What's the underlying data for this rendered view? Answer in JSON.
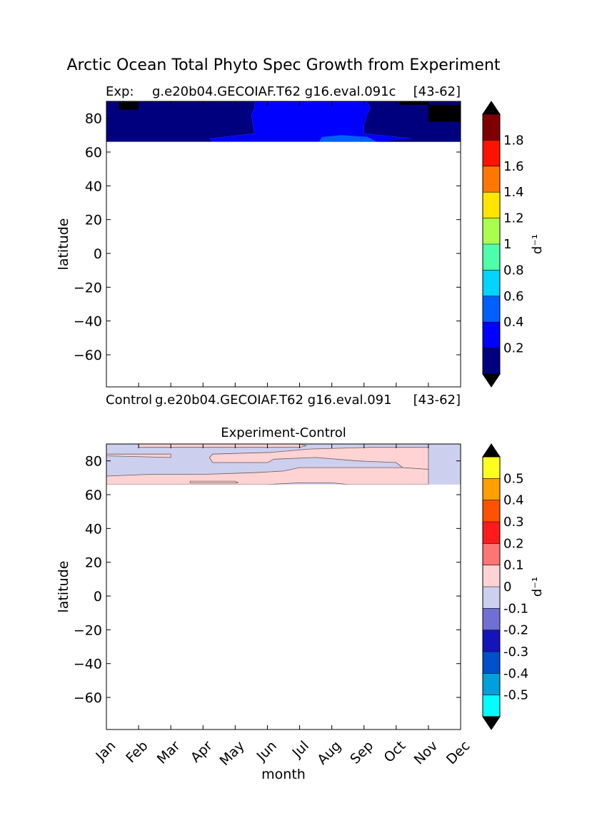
{
  "title": "Arctic Ocean Total Phyto Spec Growth from Experiment",
  "panel1": {
    "label_left": "Exp:",
    "case": "g.e20b04.GECOIAF.T62 g16.eval.091c",
    "years": "[43-62]"
  },
  "panel2": {
    "label_left": "Control",
    "case": "g.e20b04.GECOIAF.T62 g16.eval.091",
    "years": "[43-62]"
  },
  "panel3": {
    "title": "Experiment-Control"
  },
  "colors": {
    "under": "#000000",
    "over": "#000000"
  },
  "chart_data": [
    {
      "type": "heatmap",
      "xlabel": "",
      "ylabel": "latitude",
      "xlim": [
        0,
        11
      ],
      "ylim": [
        -79,
        90
      ],
      "yticks": [
        80,
        60,
        40,
        20,
        0,
        -20,
        -40,
        -60
      ],
      "yticklabels": [
        "80",
        "60",
        "40",
        "20",
        "0",
        "−20",
        "−40",
        "−60"
      ],
      "data_lat_range": [
        66,
        90
      ],
      "colorbar": {
        "unit": "d⁻¹",
        "levels": [
          0.2,
          0.4,
          0.6,
          0.8,
          1.0,
          1.2,
          1.4,
          1.6,
          1.8
        ],
        "ticklabels": [
          "0.2",
          "0.4",
          "0.6",
          "0.8",
          "1",
          "1.2",
          "1.4",
          "1.6",
          "1.8"
        ],
        "colors": [
          "#00007f",
          "#0000fe",
          "#0060ff",
          "#00d4ff",
          "#4dffaa",
          "#aaff4d",
          "#ffe500",
          "#ff7700",
          "#ff1300",
          "#7f0000"
        ],
        "extend": "both"
      },
      "regions": [
        {
          "level": "<0.2",
          "polygon": [
            [
              0,
              66
            ],
            [
              3.3,
              66
            ],
            [
              3.2,
              68
            ],
            [
              4.6,
              71
            ],
            [
              4.5,
              82
            ],
            [
              4.6,
              86
            ],
            [
              4.6,
              90
            ],
            [
              0,
              90
            ]
          ]
        },
        {
          "level": "0.2-0.4",
          "polygon": [
            [
              3.3,
              66
            ],
            [
              11,
              66
            ],
            [
              11,
              67
            ],
            [
              9.5,
              68
            ],
            [
              8,
              71
            ],
            [
              8,
              73
            ],
            [
              8,
              76
            ],
            [
              8.1,
              82
            ],
            [
              8.2,
              86
            ],
            [
              8.1,
              90
            ],
            [
              4.6,
              90
            ],
            [
              4.6,
              86
            ],
            [
              4.5,
              82
            ],
            [
              4.6,
              71
            ],
            [
              3.2,
              68
            ]
          ]
        },
        {
          "level": "0.4-0.6",
          "polygon": [
            [
              6.6,
              66
            ],
            [
              8.4,
              66
            ],
            [
              8.1,
              69
            ],
            [
              7.3,
              70
            ],
            [
              6.7,
              69
            ]
          ]
        },
        {
          "level": "<0.2",
          "polygon": [
            [
              8.4,
              66
            ],
            [
              11,
              66
            ],
            [
              11,
              90
            ],
            [
              8.1,
              90
            ],
            [
              8.2,
              86
            ],
            [
              8.1,
              82
            ],
            [
              8,
              76
            ],
            [
              8,
              71
            ],
            [
              9.5,
              68
            ],
            [
              8.4,
              66
            ]
          ]
        },
        {
          "level": "under",
          "polygon": [
            [
              0.4,
              85
            ],
            [
              1.0,
              85
            ],
            [
              1.0,
              90
            ],
            [
              0.4,
              90
            ]
          ]
        },
        {
          "level": "under",
          "polygon": [
            [
              10.0,
              78
            ],
            [
              11,
              78
            ],
            [
              11,
              88
            ],
            [
              10.0,
              88
            ]
          ]
        },
        {
          "level": "under",
          "polygon": [
            [
              9.1,
              88
            ],
            [
              10.0,
              88
            ],
            [
              10.0,
              90
            ],
            [
              9.1,
              90
            ]
          ]
        }
      ]
    },
    {
      "type": "heatmap",
      "title": "Experiment-Control",
      "xlabel": "month",
      "ylabel": "latitude",
      "xlim": [
        0,
        11
      ],
      "ylim": [
        -79,
        90
      ],
      "xticklabels": [
        "Jan",
        "Feb",
        "Mar",
        "Apr",
        "May",
        "Jun",
        "Jul",
        "Aug",
        "Sep",
        "Oct",
        "Nov",
        "Dec"
      ],
      "yticks": [
        80,
        60,
        40,
        20,
        0,
        -20,
        -40,
        -60
      ],
      "yticklabels": [
        "80",
        "60",
        "40",
        "20",
        "0",
        "−20",
        "−40",
        "−60"
      ],
      "data_lat_range": [
        66,
        90
      ],
      "colorbar": {
        "unit": "d⁻¹",
        "levels": [
          -0.5,
          -0.4,
          -0.3,
          -0.2,
          -0.1,
          0,
          0.1,
          0.2,
          0.3,
          0.4,
          0.5
        ],
        "ticklabels": [
          "-0.5",
          "-0.4",
          "-0.3",
          "-0.2",
          "-0.1",
          "0",
          "0.1",
          "0.2",
          "0.3",
          "0.4",
          "0.5"
        ],
        "colors": [
          "#00ffff",
          "#00a0dd",
          "#0050cc",
          "#1414bb",
          "#7070d4",
          "#cccfee",
          "#ffd3d3",
          "#ff7474",
          "#ff1b1b",
          "#ff5200",
          "#ff9f00",
          "#ffff1f"
        ],
        "extend": "both"
      },
      "base_level": "-0.1-0",
      "regions": [
        {
          "level": "0-0.1",
          "polygon": [
            [
              1.0,
              88
            ],
            [
              6.0,
              88
            ],
            [
              6.2,
              89
            ],
            [
              6.0,
              90
            ],
            [
              1.0,
              90
            ]
          ]
        },
        {
          "level": "0-0.1",
          "polygon": [
            [
              0,
              84
            ],
            [
              2.0,
              84
            ],
            [
              2.0,
              82
            ],
            [
              0,
              83
            ]
          ]
        },
        {
          "level": "0-0.1",
          "polygon": [
            [
              3.3,
              79
            ],
            [
              5.0,
              79
            ],
            [
              5.2,
              81
            ],
            [
              6.5,
              82
            ],
            [
              7.8,
              80
            ],
            [
              9.0,
              79
            ],
            [
              9.2,
              76
            ],
            [
              10,
              75
            ],
            [
              10,
              88
            ],
            [
              8.2,
              88
            ],
            [
              6.3,
              87
            ],
            [
              5.1,
              85
            ],
            [
              3.3,
              84
            ],
            [
              3.2,
              82
            ],
            [
              3.3,
              79
            ]
          ]
        },
        {
          "level": "0-0.1",
          "polygon": [
            [
              0,
              66
            ],
            [
              3.8,
              66
            ],
            [
              5.0,
              66
            ],
            [
              6.0,
              67
            ],
            [
              7.0,
              67
            ],
            [
              7.5,
              66
            ],
            [
              10,
              66
            ],
            [
              10,
              75
            ],
            [
              9.2,
              76
            ],
            [
              8.0,
              76
            ],
            [
              6.0,
              76
            ],
            [
              5.5,
              74
            ],
            [
              4.6,
              73
            ],
            [
              3.0,
              72
            ],
            [
              1.3,
              72
            ],
            [
              0,
              71
            ]
          ]
        },
        {
          "level": "0-0.1",
          "polygon": [
            [
              2.6,
              67
            ],
            [
              4.1,
              67
            ],
            [
              4.0,
              68
            ],
            [
              2.6,
              68
            ]
          ]
        }
      ]
    }
  ]
}
